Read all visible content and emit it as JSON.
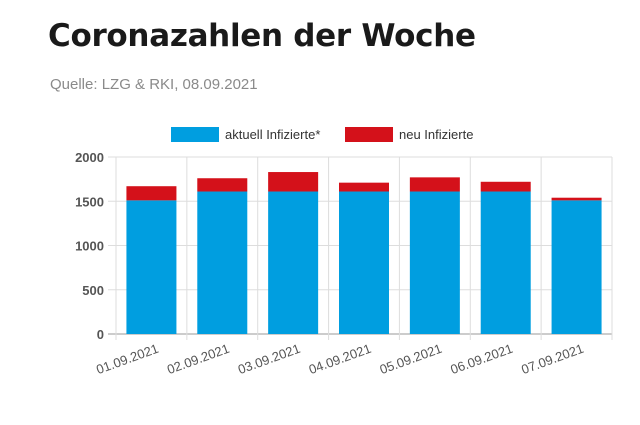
{
  "title": "Coronazahlen der Woche",
  "source": "Quelle: LZG & RKI, 08.09.2021",
  "colors": {
    "aktuell": "#009ee0",
    "neu": "#d4111a",
    "grid": "#dddddd",
    "axis": "#999999"
  },
  "chart_data": {
    "type": "bar",
    "stacked": true,
    "categories": [
      "01.09.2021",
      "02.09.2021",
      "03.09.2021",
      "04.09.2021",
      "05.09.2021",
      "06.09.2021",
      "07.09.2021"
    ],
    "series": [
      {
        "name": "aktuell Infizierte*",
        "values": [
          1510,
          1610,
          1610,
          1610,
          1610,
          1610,
          1510
        ]
      },
      {
        "name": "neu Infizierte",
        "values": [
          160,
          150,
          220,
          100,
          160,
          110,
          30
        ]
      }
    ],
    "ylim": [
      0,
      2000
    ],
    "yticks": [
      0,
      500,
      1000,
      1500,
      2000
    ],
    "grid": true,
    "legend": "top"
  }
}
